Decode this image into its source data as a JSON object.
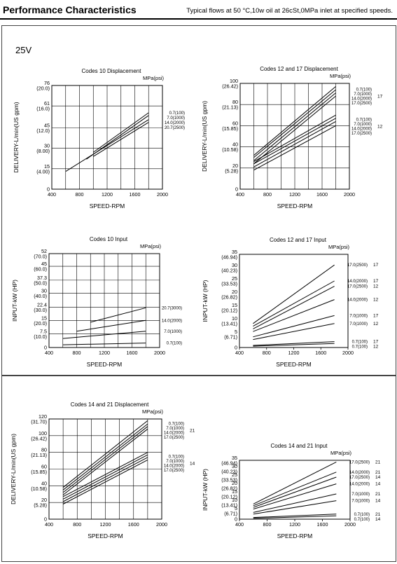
{
  "header": {
    "title": "Performance Characteristics",
    "note": "Typical flows at 50 °C,10w oil at 26cSt,0MPa inlet at specified speeds."
  },
  "variant": "25V",
  "chart_data": [
    {
      "type": "line",
      "title": "Codes 10 Displacement",
      "unit_label": "MPa(psi)",
      "xlabel": "SPEED-RPM",
      "ylabel": "DELIVERY-L/min(US gpm)",
      "xlim": [
        400,
        2000
      ],
      "ylim": [
        0,
        76
      ],
      "xticks": [
        400,
        800,
        1200,
        1600,
        2000
      ],
      "yticks": [
        {
          "v": 0,
          "t": "0"
        },
        {
          "v": 15,
          "t": "15(4.00)"
        },
        {
          "v": 30,
          "t": "30(8.00)"
        },
        {
          "v": 45,
          "t": "45(12.0)"
        },
        {
          "v": 61,
          "t": "61(16.0)"
        },
        {
          "v": 76,
          "t": "76(20.0)"
        }
      ],
      "grid": true,
      "series": [
        {
          "name": "0.7(100)",
          "x": [
            1000,
            1800
          ],
          "y": [
            27,
            56
          ]
        },
        {
          "name": "7.0(1000)",
          "x": [
            900,
            1800
          ],
          "y": [
            22,
            54
          ]
        },
        {
          "name": "14.0(2000)",
          "x": [
            600,
            1800
          ],
          "y": [
            13,
            51
          ]
        },
        {
          "name": "20.7(2500)",
          "x": [
            1000,
            1800
          ],
          "y": [
            24,
            49
          ]
        }
      ]
    },
    {
      "type": "line",
      "title": "Codes 12 and 17 Displacement",
      "unit_label": "MPa(psi)",
      "xlabel": "SPEED-RPM",
      "ylabel": "DELIVERY-L/min(US gpm)",
      "xlim": [
        400,
        2000
      ],
      "ylim": [
        0,
        100
      ],
      "xticks": [
        400,
        800,
        1200,
        1600,
        2000
      ],
      "yticks": [
        {
          "v": 0,
          "t": "0"
        },
        {
          "v": 20,
          "t": "20(5.28)"
        },
        {
          "v": 40,
          "t": "40(10.58)"
        },
        {
          "v": 60,
          "t": "60(15.85)"
        },
        {
          "v": 80,
          "t": "80(21.13)"
        },
        {
          "v": 100,
          "t": "100(26.42)"
        }
      ],
      "grid": true,
      "groups": [
        {
          "code": "17",
          "entries": [
            "0.7(100)",
            "7.0(1000)",
            "14.0(2000)",
            "17.0(2500)"
          ]
        },
        {
          "code": "12",
          "entries": [
            "0.7(100)",
            "7.0(1000)",
            "14.0(2000)",
            "17.0(2500)"
          ]
        }
      ],
      "series": [
        {
          "name": "0.7(100)",
          "code": "17",
          "x": [
            600,
            1800
          ],
          "y": [
            32,
            97
          ]
        },
        {
          "name": "7.0(1000)",
          "code": "17",
          "x": [
            600,
            1800
          ],
          "y": [
            30,
            94
          ]
        },
        {
          "name": "14.0(2000)",
          "code": "17",
          "x": [
            600,
            1800
          ],
          "y": [
            27,
            91
          ]
        },
        {
          "name": "17.0(2500)",
          "code": "17",
          "x": [
            600,
            1800
          ],
          "y": [
            24,
            88
          ]
        },
        {
          "name": "0.7(100)",
          "code": "12",
          "x": [
            600,
            1800
          ],
          "y": [
            26,
            70
          ]
        },
        {
          "name": "7.0(1000)",
          "code": "12",
          "x": [
            600,
            1800
          ],
          "y": [
            24,
            67
          ]
        },
        {
          "name": "14.0(2000)",
          "code": "12",
          "x": [
            600,
            1800
          ],
          "y": [
            21,
            64
          ]
        },
        {
          "name": "17.0(2500)",
          "code": "12",
          "x": [
            600,
            1800
          ],
          "y": [
            18,
            60
          ]
        }
      ]
    },
    {
      "type": "line",
      "title": "Codes 10 Input",
      "unit_label": "MPa(psi)",
      "xlabel": "SPEED-RPM",
      "ylabel": "INPUT-kW (HP)",
      "xlim": [
        400,
        2000
      ],
      "ylim": [
        0,
        52
      ],
      "xticks": [
        400,
        800,
        1200,
        1600,
        2000
      ],
      "yticks": [
        {
          "v": 0,
          "t": "0"
        },
        {
          "v": 7.5,
          "t": "7.5 (10.0)"
        },
        {
          "v": 15,
          "t": "15 (20.0)"
        },
        {
          "v": 22.4,
          "t": "22.4 (30.0)"
        },
        {
          "v": 30,
          "t": "30 (40.0)"
        },
        {
          "v": 37.3,
          "t": "37.3 (50.0)"
        },
        {
          "v": 45,
          "t": "45 (60.0)"
        },
        {
          "v": 52,
          "t": "52 (70.0)"
        }
      ],
      "grid": true,
      "series": [
        {
          "name": "20.7(3000)",
          "x": [
            1000,
            1800
          ],
          "y": [
            14,
            22
          ]
        },
        {
          "name": "14.0(2000)",
          "x": [
            800,
            1800
          ],
          "y": [
            9,
            15
          ]
        },
        {
          "name": "7.0(1000)",
          "x": [
            600,
            1800
          ],
          "y": [
            5,
            9
          ]
        },
        {
          "name": "0.7(100)",
          "x": [
            600,
            1800
          ],
          "y": [
            1.5,
            2.5
          ]
        }
      ]
    },
    {
      "type": "line",
      "title": "Codes 12 and 17 Input",
      "unit_label": "MPa(psi)",
      "xlabel": "SPEED-RPM",
      "ylabel": "INPUT-kW (HP)",
      "xlim": [
        400,
        2000
      ],
      "ylim": [
        0,
        35
      ],
      "xticks": [
        400,
        800,
        1200,
        1600,
        2000
      ],
      "yticks": [
        {
          "v": 0,
          "t": "0"
        },
        {
          "v": 5,
          "t": "5 (6.71)"
        },
        {
          "v": 10,
          "t": "10 (13.41)"
        },
        {
          "v": 15,
          "t": "15 (20.12)"
        },
        {
          "v": 20,
          "t": "20 (26.82)"
        },
        {
          "v": 25,
          "t": "25 (33.53)"
        },
        {
          "v": 30,
          "t": "30 (40.23)"
        },
        {
          "v": 35,
          "t": "35 (46.94)"
        }
      ],
      "grid": false,
      "series": [
        {
          "name": "17.0(2500)",
          "code": "17",
          "x": [
            600,
            1800
          ],
          "y": [
            9,
            31
          ]
        },
        {
          "name": "14.0(2000)",
          "code": "17",
          "x": [
            600,
            1800
          ],
          "y": [
            8,
            25
          ]
        },
        {
          "name": "17.0(2500)",
          "code": "12",
          "x": [
            600,
            1800
          ],
          "y": [
            7,
            23
          ]
        },
        {
          "name": "14.0(2000)",
          "code": "12",
          "x": [
            600,
            1800
          ],
          "y": [
            6,
            18
          ]
        },
        {
          "name": "7.0(1000)",
          "code": "17",
          "x": [
            600,
            1800
          ],
          "y": [
            4,
            12
          ]
        },
        {
          "name": "7.0(1000)",
          "code": "12",
          "x": [
            600,
            1800
          ],
          "y": [
            3,
            9
          ]
        },
        {
          "name": "0.7(100)",
          "code": "17",
          "x": [
            600,
            1800
          ],
          "y": [
            0.8,
            2.2
          ]
        },
        {
          "name": "0.7(100)",
          "code": "12",
          "x": [
            600,
            1800
          ],
          "y": [
            0.5,
            1.5
          ]
        }
      ]
    },
    {
      "type": "line",
      "title": "Codes 14 and 21 Displacement",
      "unit_label": "MPa(psi)",
      "xlabel": "SPEED-RPM",
      "ylabel": "DELIVERY-L/min(US gpm)",
      "xlim": [
        400,
        2000
      ],
      "ylim": [
        0,
        120
      ],
      "xticks": [
        400,
        800,
        1200,
        1600,
        2000
      ],
      "yticks": [
        {
          "v": 0,
          "t": "0"
        },
        {
          "v": 20,
          "t": "20 (5.28)"
        },
        {
          "v": 40,
          "t": "40 (10.58)"
        },
        {
          "v": 60,
          "t": "60 (15.85)"
        },
        {
          "v": 80,
          "t": "80 (21.13)"
        },
        {
          "v": 100,
          "t": "100 (26.42)"
        },
        {
          "v": 120,
          "t": "120 (31.70)"
        }
      ],
      "grid": true,
      "groups": [
        {
          "code": "21",
          "entries": [
            "0.7(100)",
            "7.0(1000)",
            "14.0(2000)",
            "17.0(2500)"
          ]
        },
        {
          "code": "14",
          "entries": [
            "0.7(100)",
            "7.0(1000)",
            "14.0(2000)",
            "17.0(2500)"
          ]
        }
      ],
      "series": [
        {
          "name": "0.7(100)",
          "code": "21",
          "x": [
            600,
            1800
          ],
          "y": [
            38,
            118
          ]
        },
        {
          "name": "7.0(1000)",
          "code": "21",
          "x": [
            600,
            1800
          ],
          "y": [
            35,
            114
          ]
        },
        {
          "name": "14.0(2000)",
          "code": "21",
          "x": [
            600,
            1800
          ],
          "y": [
            32,
            111
          ]
        },
        {
          "name": "17.0(2500)",
          "code": "21",
          "x": [
            600,
            1800
          ],
          "y": [
            29,
            108
          ]
        },
        {
          "name": "0.7(100)",
          "code": "14",
          "x": [
            600,
            1800
          ],
          "y": [
            27,
            80
          ]
        },
        {
          "name": "7.0(1000)",
          "code": "14",
          "x": [
            600,
            1800
          ],
          "y": [
            24,
            77
          ]
        },
        {
          "name": "14.0(2000)",
          "code": "14",
          "x": [
            600,
            1800
          ],
          "y": [
            21,
            74
          ]
        },
        {
          "name": "17.0(2500)",
          "code": "14",
          "x": [
            600,
            1800
          ],
          "y": [
            18,
            71
          ]
        }
      ]
    },
    {
      "type": "line",
      "title": "Codes 14 and 21 Input",
      "unit_label": "MPa(psi)",
      "xlabel": "SPEED-RPM",
      "ylabel": "INPUT-kW (HP)",
      "xlim": [
        400,
        2000
      ],
      "ylim": [
        0,
        35
      ],
      "xticks": [
        400,
        800,
        1200,
        1600,
        2000
      ],
      "yticks": [
        {
          "v": 0,
          "t": "0"
        },
        {
          "v": 5,
          "t": "5 (6.71)"
        },
        {
          "v": 10,
          "t": "10 (13.41)"
        },
        {
          "v": 15,
          "t": "15 (20.12)"
        },
        {
          "v": 20,
          "t": "20 (26.82)"
        },
        {
          "v": 25,
          "t": "25 (33.53)"
        },
        {
          "v": 30,
          "t": "30 (40.23)"
        },
        {
          "v": 35,
          "t": "35 (46.94)"
        }
      ],
      "grid": false,
      "series": [
        {
          "name": "17.0(2500)",
          "code": "21",
          "x": [
            600,
            1800
          ],
          "y": [
            9,
            34
          ]
        },
        {
          "name": "14.0(2000)",
          "code": "21",
          "x": [
            600,
            1800
          ],
          "y": [
            8,
            28
          ]
        },
        {
          "name": "17.0(2500)",
          "code": "14",
          "x": [
            600,
            1800
          ],
          "y": [
            7,
            25
          ]
        },
        {
          "name": "14.0(2000)",
          "code": "14",
          "x": [
            600,
            1800
          ],
          "y": [
            6,
            21
          ]
        },
        {
          "name": "7.0(1000)",
          "code": "21",
          "x": [
            600,
            1800
          ],
          "y": [
            4,
            15
          ]
        },
        {
          "name": "7.0(1000)",
          "code": "14",
          "x": [
            600,
            1800
          ],
          "y": [
            3,
            11
          ]
        },
        {
          "name": "0.7(100)",
          "code": "21",
          "x": [
            600,
            1800
          ],
          "y": [
            1,
            3
          ]
        },
        {
          "name": "0.7(100)",
          "code": "14",
          "x": [
            600,
            1800
          ],
          "y": [
            0.5,
            2
          ]
        }
      ]
    }
  ]
}
